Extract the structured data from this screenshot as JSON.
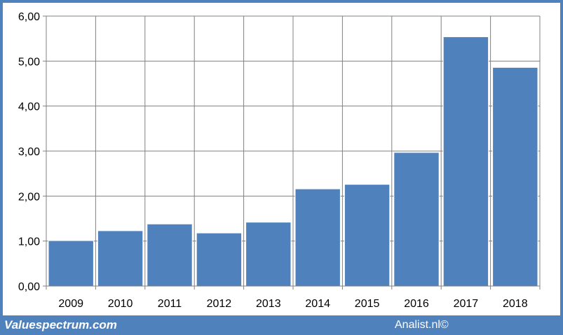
{
  "chart_data": {
    "type": "bar",
    "categories": [
      "2009",
      "2010",
      "2011",
      "2012",
      "2013",
      "2014",
      "2015",
      "2016",
      "2017",
      "2018"
    ],
    "values": [
      1.01,
      1.23,
      1.38,
      1.18,
      1.42,
      2.16,
      2.26,
      2.97,
      5.54,
      4.86
    ],
    "ylim": [
      0,
      6
    ],
    "yticks": [
      "0,00",
      "1,00",
      "2,00",
      "3,00",
      "4,00",
      "5,00",
      "6,00"
    ],
    "grid": true,
    "bar_color": "#4f81bd",
    "title": "",
    "xlabel": "",
    "ylabel": ""
  },
  "footer": {
    "left": "Valuespectrum.com",
    "right": "Analist.nl©"
  },
  "colors": {
    "frame": "#4f81bd",
    "background": "#ffffff",
    "grid": "#808080"
  }
}
